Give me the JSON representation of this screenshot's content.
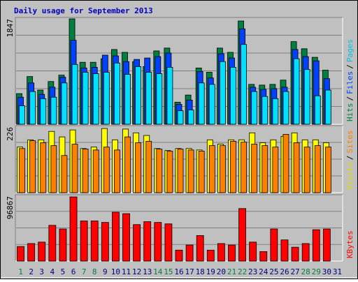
{
  "chart_data": [
    {
      "type": "bar",
      "title": "Daily usage for September 2013",
      "categories": [
        "1",
        "2",
        "3",
        "4",
        "5",
        "6",
        "7",
        "8",
        "9",
        "10",
        "11",
        "12",
        "13",
        "14",
        "15",
        "16",
        "17",
        "18",
        "19",
        "20",
        "21",
        "22",
        "23",
        "24",
        "25",
        "26",
        "27",
        "28",
        "29",
        "30",
        "31"
      ],
      "category_colors": [
        "#008040",
        "#000080",
        "#000080",
        "#000080",
        "#000080",
        "#000080",
        "#008040",
        "#008040",
        "#000080",
        "#000080",
        "#000080",
        "#000080",
        "#000080",
        "#008040",
        "#008040",
        "#000080",
        "#000080",
        "#000080",
        "#000080",
        "#000080",
        "#008040",
        "#008040",
        "#000080",
        "#000080",
        "#000080",
        "#000080",
        "#000080",
        "#008040",
        "#008040",
        "#000080",
        "#000080"
      ],
      "legend_separator": "/",
      "ylim": [
        0,
        1847
      ],
      "yticks": [
        1847
      ],
      "grid": true,
      "series": [
        {
          "name": "Hits",
          "color": "#008040",
          "values": [
            537,
            836,
            599,
            749,
            861,
            1847,
            1086,
            1086,
            1148,
            1310,
            1260,
            1098,
            1011,
            1285,
            1335,
            387,
            512,
            986,
            911,
            1335,
            1260,
            1810,
            699,
            686,
            699,
            774,
            1448,
            1323,
            1173,
            948,
            0
          ]
        },
        {
          "name": "Files",
          "color": "#0040ff",
          "values": [
            474,
            724,
            524,
            649,
            824,
            1472,
            986,
            998,
            1211,
            1198,
            1098,
            1136,
            1161,
            1186,
            1248,
            349,
            424,
            923,
            811,
            1236,
            1161,
            1672,
            649,
            611,
            624,
            649,
            1310,
            1186,
            1111,
            799,
            0
          ]
        },
        {
          "name": "Pages",
          "color": "#00e0ff",
          "values": [
            324,
            574,
            449,
            474,
            724,
            1048,
            911,
            886,
            911,
            1073,
            874,
            1011,
            911,
            886,
            998,
            237,
            250,
            724,
            699,
            1098,
            998,
            1398,
            574,
            487,
            449,
            574,
            1148,
            961,
            499,
            599,
            0
          ]
        }
      ]
    },
    {
      "type": "bar",
      "legend_separator": "/",
      "ylim": [
        0,
        226
      ],
      "yticks": [
        226
      ],
      "grid": true,
      "series": [
        {
          "name": "Visits",
          "color": "#ffff00",
          "values": [
            157,
            182,
            182,
            211,
            192,
            216,
            152,
            157,
            221,
            182,
            219,
            206,
            197,
            152,
            145,
            152,
            152,
            147,
            182,
            167,
            182,
            182,
            206,
            172,
            182,
            194,
            206,
            182,
            182,
            172,
            0
          ]
        },
        {
          "name": "Sites",
          "color": "#ff8000",
          "values": [
            152,
            179,
            172,
            162,
            128,
            167,
            150,
            147,
            157,
            147,
            192,
            172,
            177,
            150,
            143,
            150,
            147,
            143,
            162,
            162,
            177,
            174,
            167,
            162,
            157,
            201,
            172,
            157,
            162,
            157,
            0
          ]
        }
      ]
    },
    {
      "type": "bar",
      "ylim": [
        0,
        96867
      ],
      "yticks": [
        96867
      ],
      "grid": true,
      "series": [
        {
          "name": "KBytes",
          "color": "#ff0000",
          "values": [
            21760,
            26112,
            28288,
            53312,
            47872,
            95744,
            59840,
            59840,
            57664,
            72896,
            70720,
            54400,
            58752,
            57664,
            55488,
            16320,
            23936,
            38080,
            16320,
            26112,
            23936,
            78336,
            28288,
            14144,
            47872,
            31552,
            20672,
            26112,
            46784,
            47872,
            0
          ]
        }
      ]
    }
  ]
}
